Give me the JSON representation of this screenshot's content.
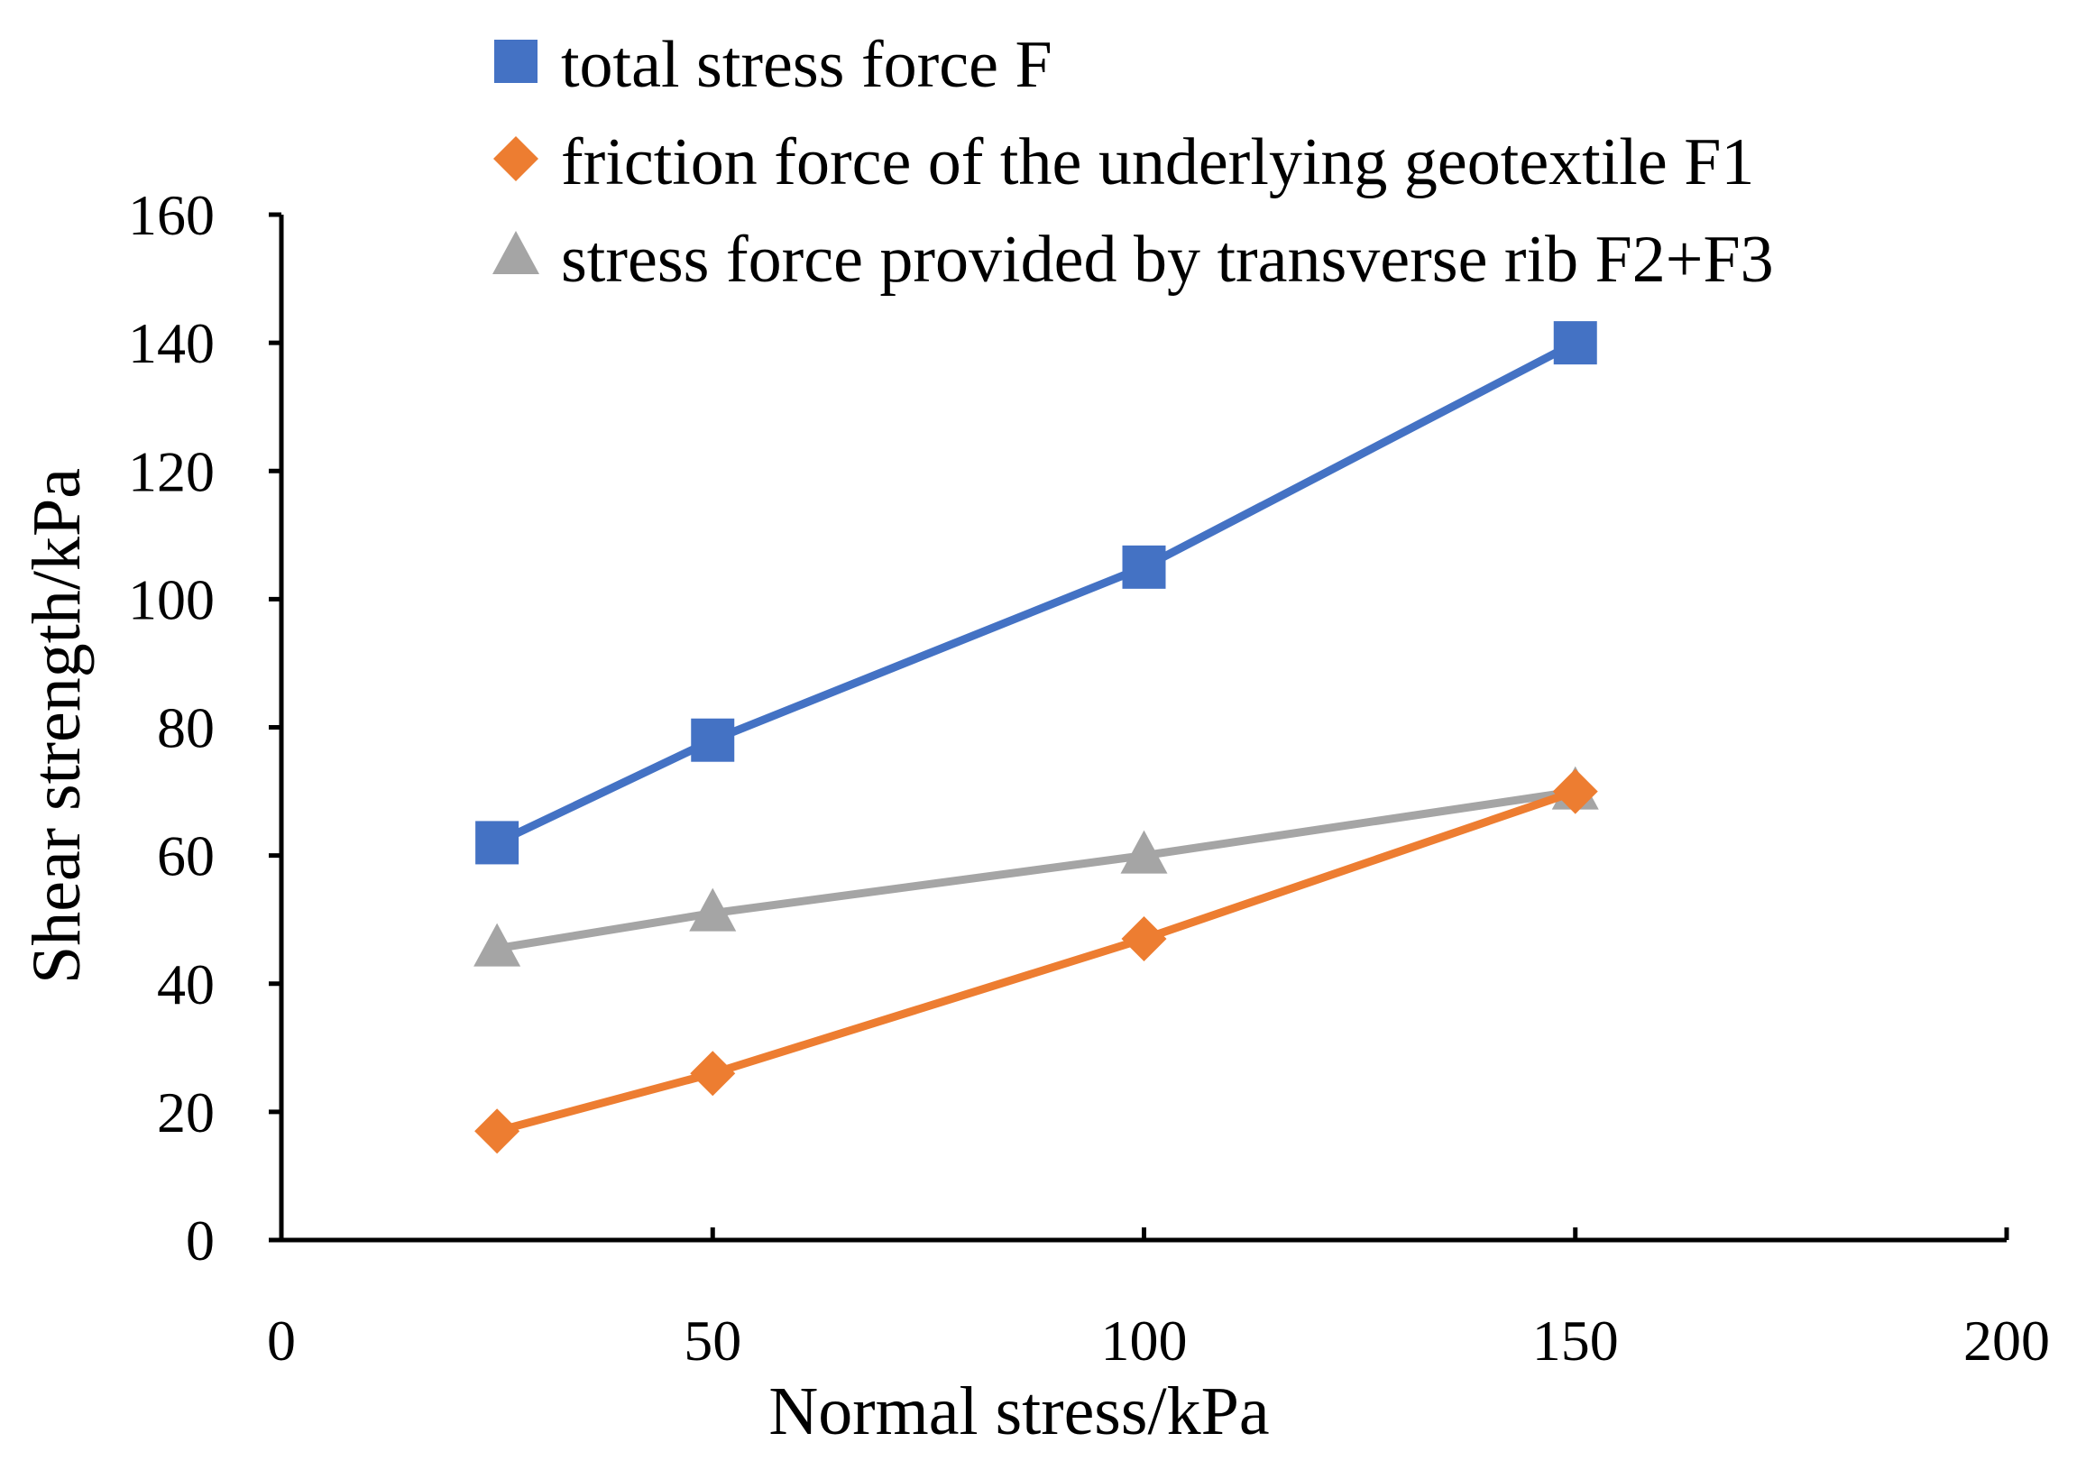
{
  "chart_data": {
    "type": "line",
    "title": "",
    "xlabel": "Normal stress/kPa",
    "ylabel": "Shear strength/kPa",
    "xlim": [
      0,
      200
    ],
    "ylim": [
      0,
      160
    ],
    "xticks": [
      0,
      50,
      100,
      150,
      200
    ],
    "yticks": [
      0,
      20,
      40,
      60,
      80,
      100,
      120,
      140,
      160
    ],
    "grid": false,
    "legend_position": "top",
    "series": [
      {
        "name": "total stress force F",
        "marker": "square",
        "color": "#4472C4",
        "x": [
          25,
          50,
          100,
          150
        ],
        "y": [
          62,
          78,
          105,
          140
        ]
      },
      {
        "name": "friction force of the underlying geotextile F1",
        "marker": "diamond",
        "color": "#ED7D31",
        "x": [
          25,
          50,
          100,
          150
        ],
        "y": [
          17,
          26,
          47,
          70
        ]
      },
      {
        "name": "stress force provided by transverse rib F2+F3",
        "marker": "triangle",
        "color": "#A5A5A5",
        "x": [
          25,
          50,
          100,
          150
        ],
        "y": [
          45.5,
          51,
          60,
          70
        ]
      }
    ]
  }
}
